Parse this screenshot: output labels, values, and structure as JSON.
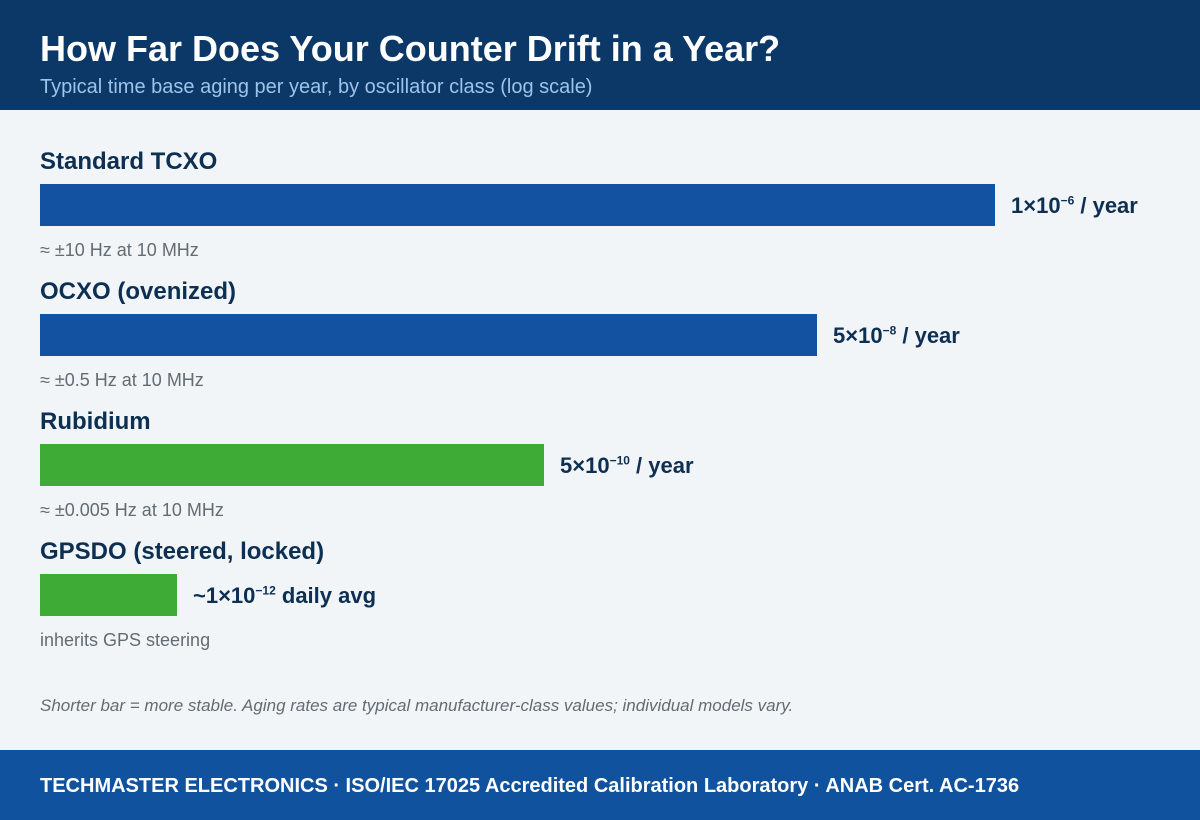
{
  "chart_data": {
    "type": "bar",
    "orientation": "horizontal",
    "scale": "log",
    "title": "How Far Does Your Counter Drift in a Year?",
    "subtitle": "Typical time base aging per year, by oscillator class (log scale)",
    "categories": [
      "Standard TCXO",
      "OCXO (ovenized)",
      "Rubidium",
      "GPSDO (steered, locked)"
    ],
    "values": [
      1e-06,
      5e-08,
      5e-10,
      1e-12
    ],
    "bar_fill": [
      0.955,
      0.777,
      0.504,
      0.137
    ],
    "value_labels": [
      {
        "mantissa": "1×10",
        "exponent": "−6",
        "suffix": " / year"
      },
      {
        "mantissa": "5×10",
        "exponent": "−8",
        "suffix": " / year"
      },
      {
        "mantissa": "5×10",
        "exponent": "−10",
        "suffix": " / year"
      },
      {
        "mantissa": "~1×10",
        "exponent": "−12",
        "suffix": " daily avg"
      }
    ],
    "notes": [
      "≈ ±10 Hz at 10 MHz",
      "≈ ±0.5 Hz at 10 MHz",
      "≈ ±0.005 Hz at 10 MHz",
      "inherits GPS steering"
    ],
    "colors": [
      "#1252a0",
      "#1252a0",
      "#3dab35",
      "#3dab35"
    ],
    "footnote": "Shorter bar = more stable. Aging rates are typical manufacturer-class values; individual models vary."
  },
  "footer": {
    "text": "TECHMASTER ELECTRONICS · ISO/IEC 17025 Accredited Calibration Laboratory · ANAB Cert. AC-1736"
  },
  "colors": {
    "header_bg": "#0b3866",
    "footer_bg": "#10529e",
    "page_bg": "#f2f5f8"
  }
}
